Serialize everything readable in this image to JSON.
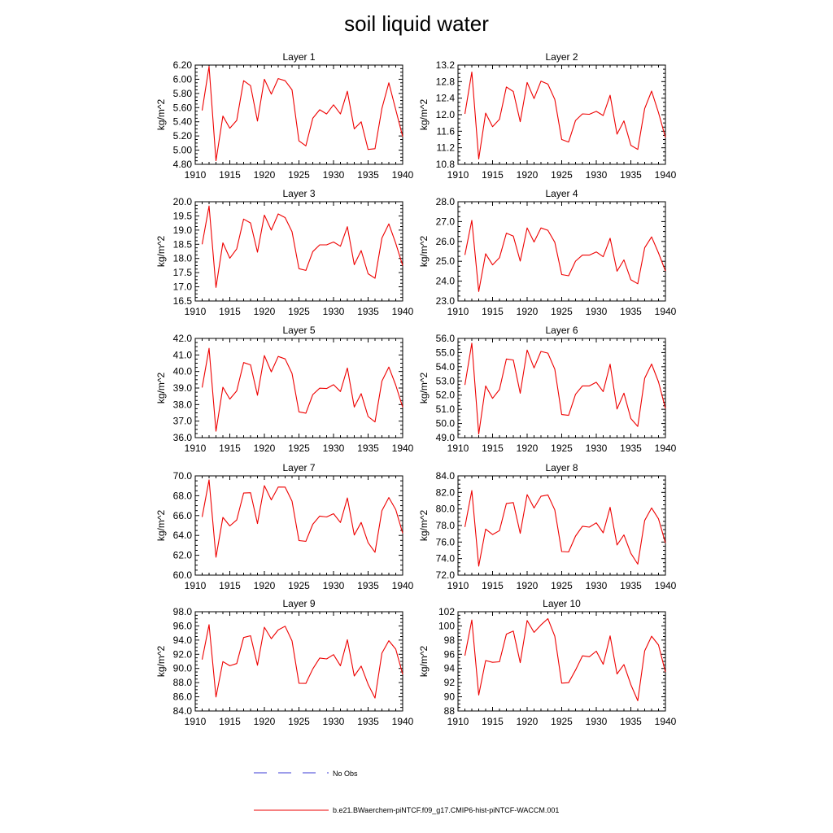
{
  "title": "soil liquid water",
  "colors": {
    "model": "#ee0000",
    "obs": "#3b3bd6",
    "axis": "#000000"
  },
  "legend": {
    "obs_label": "No Obs",
    "model_label": "b.e21.BWaerchem-piNTCF.f09_g17.CMIP6-hist-piNTCF-WACCM.001"
  },
  "chart_data": [
    {
      "type": "line",
      "title": "Layer 1",
      "ylabel": "kg/m^2",
      "xlim": [
        1910,
        1940
      ],
      "ylim": [
        4.8,
        6.2
      ],
      "xticks": [
        1910,
        1915,
        1920,
        1925,
        1930,
        1935,
        1940
      ],
      "xtick_labels": [
        "1910",
        "1915",
        "1920",
        "1925",
        "1930",
        "1935",
        "1940"
      ],
      "yticks": [
        4.8,
        5.0,
        5.2,
        5.4,
        5.6,
        5.8,
        6.0,
        6.2
      ],
      "ytick_labels": [
        "4.80",
        "5.00",
        "5.20",
        "5.40",
        "5.60",
        "5.80",
        "6.00",
        "6.20"
      ],
      "x": [
        1911,
        1912,
        1913,
        1914,
        1915,
        1916,
        1917,
        1918,
        1919,
        1920,
        1921,
        1922,
        1923,
        1924,
        1925,
        1926,
        1927,
        1928,
        1929,
        1930,
        1931,
        1932,
        1933,
        1934,
        1935,
        1936,
        1937,
        1938,
        1939,
        1940
      ],
      "series": [
        {
          "name": "b.e21.BWaerchem-piNTCF.f09_g17.CMIP6-hist-piNTCF-WACCM.001",
          "values": [
            5.56,
            6.18,
            4.85,
            5.48,
            5.31,
            5.42,
            5.98,
            5.91,
            5.41,
            6.0,
            5.79,
            6.01,
            5.98,
            5.85,
            5.13,
            5.06,
            5.45,
            5.57,
            5.51,
            5.64,
            5.51,
            5.83,
            5.3,
            5.4,
            5.01,
            5.02,
            5.59,
            5.95,
            5.57,
            5.19
          ]
        }
      ]
    },
    {
      "type": "line",
      "title": "Layer 2",
      "ylabel": "kg/m^2",
      "xlim": [
        1910,
        1940
      ],
      "ylim": [
        10.8,
        13.2
      ],
      "xticks": [
        1910,
        1915,
        1920,
        1925,
        1930,
        1935,
        1940
      ],
      "xtick_labels": [
        "1910",
        "1915",
        "1920",
        "1925",
        "1930",
        "1935",
        "1940"
      ],
      "yticks": [
        10.8,
        11.2,
        11.6,
        12.0,
        12.4,
        12.8,
        13.2
      ],
      "ytick_labels": [
        "10.8",
        "11.2",
        "11.6",
        "12.0",
        "12.4",
        "12.8",
        "13.2"
      ],
      "x": [
        1911,
        1912,
        1913,
        1914,
        1915,
        1916,
        1917,
        1918,
        1919,
        1920,
        1921,
        1922,
        1923,
        1924,
        1925,
        1926,
        1927,
        1928,
        1929,
        1930,
        1931,
        1932,
        1933,
        1934,
        1935,
        1936,
        1937,
        1938,
        1939,
        1940
      ],
      "series": [
        {
          "name": "b.e21.BWaerchem-piNTCF.f09_g17.CMIP6-hist-piNTCF-WACCM.001",
          "values": [
            12.02,
            13.03,
            10.93,
            12.04,
            11.71,
            11.89,
            12.67,
            12.56,
            11.83,
            12.78,
            12.39,
            12.81,
            12.74,
            12.37,
            11.4,
            11.34,
            11.86,
            12.02,
            12.01,
            12.08,
            11.98,
            12.47,
            11.53,
            11.85,
            11.26,
            11.16,
            12.15,
            12.57,
            12.05,
            11.45
          ]
        }
      ]
    },
    {
      "type": "line",
      "title": "Layer 3",
      "ylabel": "kg/m^2",
      "xlim": [
        1910,
        1940
      ],
      "ylim": [
        16.5,
        20.0
      ],
      "xticks": [
        1910,
        1915,
        1920,
        1925,
        1930,
        1935,
        1940
      ],
      "xtick_labels": [
        "1910",
        "1915",
        "1920",
        "1925",
        "1930",
        "1935",
        "1940"
      ],
      "yticks": [
        16.5,
        17.0,
        17.5,
        18.0,
        18.5,
        19.0,
        19.5,
        20.0
      ],
      "ytick_labels": [
        "16.5",
        "17.0",
        "17.5",
        "18.0",
        "18.5",
        "19.0",
        "19.5",
        "20.0"
      ],
      "x": [
        1911,
        1912,
        1913,
        1914,
        1915,
        1916,
        1917,
        1918,
        1919,
        1920,
        1921,
        1922,
        1923,
        1924,
        1925,
        1926,
        1927,
        1928,
        1929,
        1930,
        1931,
        1932,
        1933,
        1934,
        1935,
        1936,
        1937,
        1938,
        1939,
        1940
      ],
      "series": [
        {
          "name": "b.e21.BWaerchem-piNTCF.f09_g17.CMIP6-hist-piNTCF-WACCM.001",
          "values": [
            18.5,
            19.85,
            16.98,
            18.55,
            18.01,
            18.34,
            19.39,
            19.25,
            18.22,
            19.53,
            19.0,
            19.57,
            19.44,
            18.94,
            17.64,
            17.58,
            18.24,
            18.48,
            18.48,
            18.58,
            18.43,
            19.12,
            17.78,
            18.28,
            17.46,
            17.3,
            18.72,
            19.22,
            18.53,
            17.75
          ]
        }
      ]
    },
    {
      "type": "line",
      "title": "Layer 4",
      "ylabel": "kg/m^2",
      "xlim": [
        1910,
        1940
      ],
      "ylim": [
        23.0,
        28.0
      ],
      "xticks": [
        1910,
        1915,
        1920,
        1925,
        1930,
        1935,
        1940
      ],
      "xtick_labels": [
        "1910",
        "1915",
        "1920",
        "1925",
        "1930",
        "1935",
        "1940"
      ],
      "yticks": [
        23.0,
        24.0,
        25.0,
        26.0,
        27.0,
        28.0
      ],
      "ytick_labels": [
        "23.0",
        "24.0",
        "25.0",
        "26.0",
        "27.0",
        "28.0"
      ],
      "x": [
        1911,
        1912,
        1913,
        1914,
        1915,
        1916,
        1917,
        1918,
        1919,
        1920,
        1921,
        1922,
        1923,
        1924,
        1925,
        1926,
        1927,
        1928,
        1929,
        1930,
        1931,
        1932,
        1933,
        1934,
        1935,
        1936,
        1937,
        1938,
        1939,
        1940
      ],
      "series": [
        {
          "name": "b.e21.BWaerchem-piNTCF.f09_g17.CMIP6-hist-piNTCF-WACCM.001",
          "values": [
            25.32,
            27.06,
            23.48,
            25.38,
            24.82,
            25.18,
            26.42,
            26.27,
            25.01,
            26.68,
            25.97,
            26.68,
            26.56,
            25.96,
            24.33,
            24.27,
            25.01,
            25.31,
            25.31,
            25.47,
            25.23,
            26.16,
            24.5,
            25.07,
            24.07,
            23.87,
            25.68,
            26.23,
            25.42,
            24.51
          ]
        }
      ]
    },
    {
      "type": "line",
      "title": "Layer 5",
      "ylabel": "kg/m^2",
      "xlim": [
        1910,
        1940
      ],
      "ylim": [
        36.0,
        42.0
      ],
      "xticks": [
        1910,
        1915,
        1920,
        1925,
        1930,
        1935,
        1940
      ],
      "xtick_labels": [
        "1910",
        "1915",
        "1920",
        "1925",
        "1930",
        "1935",
        "1940"
      ],
      "yticks": [
        36.0,
        37.0,
        38.0,
        39.0,
        40.0,
        41.0,
        42.0
      ],
      "ytick_labels": [
        "36.0",
        "37.0",
        "38.0",
        "39.0",
        "40.0",
        "41.0",
        "42.0"
      ],
      "x": [
        1911,
        1912,
        1913,
        1914,
        1915,
        1916,
        1917,
        1918,
        1919,
        1920,
        1921,
        1922,
        1923,
        1924,
        1925,
        1926,
        1927,
        1928,
        1929,
        1930,
        1931,
        1932,
        1933,
        1934,
        1935,
        1936,
        1937,
        1938,
        1939,
        1940
      ],
      "series": [
        {
          "name": "b.e21.BWaerchem-piNTCF.f09_g17.CMIP6-hist-piNTCF-WACCM.001",
          "values": [
            39.03,
            41.4,
            36.39,
            39.05,
            38.33,
            38.83,
            40.54,
            40.4,
            38.56,
            40.96,
            39.98,
            40.91,
            40.76,
            39.88,
            37.56,
            37.48,
            38.6,
            38.99,
            38.97,
            39.2,
            38.79,
            40.21,
            37.85,
            38.66,
            37.28,
            36.95,
            39.42,
            40.27,
            39.17,
            37.84
          ]
        }
      ]
    },
    {
      "type": "line",
      "title": "Layer 6",
      "ylabel": "kg/m^2",
      "xlim": [
        1910,
        1940
      ],
      "ylim": [
        49.0,
        56.0
      ],
      "xticks": [
        1910,
        1915,
        1920,
        1925,
        1930,
        1935,
        1940
      ],
      "xtick_labels": [
        "1910",
        "1915",
        "1920",
        "1925",
        "1930",
        "1935",
        "1940"
      ],
      "yticks": [
        49.0,
        50.0,
        51.0,
        52.0,
        53.0,
        54.0,
        55.0,
        56.0
      ],
      "ytick_labels": [
        "49.0",
        "50.0",
        "51.0",
        "52.0",
        "53.0",
        "54.0",
        "55.0",
        "56.0"
      ],
      "x": [
        1911,
        1912,
        1913,
        1914,
        1915,
        1916,
        1917,
        1918,
        1919,
        1920,
        1921,
        1922,
        1923,
        1924,
        1925,
        1926,
        1927,
        1928,
        1929,
        1930,
        1931,
        1932,
        1933,
        1934,
        1935,
        1936,
        1937,
        1938,
        1939,
        1940
      ],
      "series": [
        {
          "name": "b.e21.BWaerchem-piNTCF.f09_g17.CMIP6-hist-piNTCF-WACCM.001",
          "values": [
            52.72,
            55.66,
            49.25,
            52.65,
            51.77,
            52.39,
            54.55,
            54.48,
            52.13,
            55.18,
            53.92,
            55.08,
            54.96,
            53.83,
            50.63,
            50.57,
            52.06,
            52.65,
            52.65,
            52.91,
            52.25,
            54.18,
            51.02,
            52.14,
            50.35,
            49.79,
            53.19,
            54.19,
            52.93,
            51.06
          ]
        }
      ]
    },
    {
      "type": "line",
      "title": "Layer 7",
      "ylabel": "kg/m^2",
      "xlim": [
        1910,
        1940
      ],
      "ylim": [
        60.0,
        70.0
      ],
      "xticks": [
        1910,
        1915,
        1920,
        1925,
        1930,
        1935,
        1940
      ],
      "xtick_labels": [
        "1910",
        "1915",
        "1920",
        "1925",
        "1930",
        "1935",
        "1940"
      ],
      "yticks": [
        60.0,
        62.0,
        64.0,
        66.0,
        68.0,
        70.0
      ],
      "ytick_labels": [
        "60.0",
        "62.0",
        "64.0",
        "66.0",
        "68.0",
        "70.0"
      ],
      "x": [
        1911,
        1912,
        1913,
        1914,
        1915,
        1916,
        1917,
        1918,
        1919,
        1920,
        1921,
        1922,
        1923,
        1924,
        1925,
        1926,
        1927,
        1928,
        1929,
        1930,
        1931,
        1932,
        1933,
        1934,
        1935,
        1936,
        1937,
        1938,
        1939,
        1940
      ],
      "series": [
        {
          "name": "b.e21.BWaerchem-piNTCF.f09_g17.CMIP6-hist-piNTCF-WACCM.001",
          "values": [
            65.86,
            69.6,
            61.8,
            65.82,
            64.96,
            65.56,
            68.27,
            68.3,
            65.2,
            69.02,
            67.58,
            68.88,
            68.87,
            67.45,
            63.48,
            63.41,
            65.12,
            65.95,
            65.86,
            66.19,
            65.3,
            67.78,
            64.04,
            65.31,
            63.27,
            62.3,
            66.5,
            67.82,
            66.6,
            64.22
          ]
        }
      ]
    },
    {
      "type": "line",
      "title": "Layer 8",
      "ylabel": "kg/m^2",
      "xlim": [
        1910,
        1940
      ],
      "ylim": [
        72.0,
        84.0
      ],
      "xticks": [
        1910,
        1915,
        1920,
        1925,
        1930,
        1935,
        1940
      ],
      "xtick_labels": [
        "1910",
        "1915",
        "1920",
        "1925",
        "1930",
        "1935",
        "1940"
      ],
      "yticks": [
        72.0,
        74.0,
        76.0,
        78.0,
        80.0,
        82.0,
        84.0
      ],
      "ytick_labels": [
        "72.0",
        "74.0",
        "76.0",
        "78.0",
        "80.0",
        "82.0",
        "84.0"
      ],
      "x": [
        1911,
        1912,
        1913,
        1914,
        1915,
        1916,
        1917,
        1918,
        1919,
        1920,
        1921,
        1922,
        1923,
        1924,
        1925,
        1926,
        1927,
        1928,
        1929,
        1930,
        1931,
        1932,
        1933,
        1934,
        1935,
        1936,
        1937,
        1938,
        1939,
        1940
      ],
      "series": [
        {
          "name": "b.e21.BWaerchem-piNTCF.f09_g17.CMIP6-hist-piNTCF-WACCM.001",
          "values": [
            77.82,
            82.22,
            73.09,
            77.57,
            76.91,
            77.38,
            80.67,
            80.77,
            77.06,
            81.74,
            80.11,
            81.53,
            81.7,
            79.89,
            74.85,
            74.8,
            76.72,
            77.91,
            77.8,
            78.32,
            77.11,
            80.2,
            75.65,
            76.86,
            74.64,
            73.33,
            78.61,
            80.12,
            78.81,
            75.89
          ]
        }
      ]
    },
    {
      "type": "line",
      "title": "Layer 9",
      "ylabel": "kg/m^2",
      "xlim": [
        1910,
        1940
      ],
      "ylim": [
        84.0,
        98.0
      ],
      "xticks": [
        1910,
        1915,
        1920,
        1925,
        1930,
        1935,
        1940
      ],
      "xtick_labels": [
        "1910",
        "1915",
        "1920",
        "1925",
        "1930",
        "1935",
        "1940"
      ],
      "yticks": [
        84.0,
        86.0,
        88.0,
        90.0,
        92.0,
        94.0,
        96.0,
        98.0
      ],
      "ytick_labels": [
        "84.0",
        "86.0",
        "88.0",
        "90.0",
        "92.0",
        "94.0",
        "96.0",
        "98.0"
      ],
      "x": [
        1911,
        1912,
        1913,
        1914,
        1915,
        1916,
        1917,
        1918,
        1919,
        1920,
        1921,
        1922,
        1923,
        1924,
        1925,
        1926,
        1927,
        1928,
        1929,
        1930,
        1931,
        1932,
        1933,
        1934,
        1935,
        1936,
        1937,
        1938,
        1939,
        1940
      ],
      "series": [
        {
          "name": "b.e21.BWaerchem-piNTCF.f09_g17.CMIP6-hist-piNTCF-WACCM.001",
          "values": [
            91.25,
            96.17,
            85.97,
            90.97,
            90.38,
            90.69,
            94.36,
            94.61,
            90.45,
            95.81,
            94.2,
            95.43,
            95.96,
            93.88,
            87.91,
            87.89,
            89.93,
            91.47,
            91.35,
            91.95,
            90.38,
            94.05,
            88.94,
            90.33,
            87.76,
            85.82,
            92.16,
            93.91,
            92.72,
            89.18
          ]
        }
      ]
    },
    {
      "type": "line",
      "title": "Layer 10",
      "ylabel": "kg/m^2",
      "xlim": [
        1910,
        1940
      ],
      "ylim": [
        88,
        102
      ],
      "xticks": [
        1910,
        1915,
        1920,
        1925,
        1930,
        1935,
        1940
      ],
      "xtick_labels": [
        "1910",
        "1915",
        "1920",
        "1925",
        "1930",
        "1935",
        "1940"
      ],
      "yticks": [
        88,
        90,
        92,
        94,
        96,
        98,
        100,
        102
      ],
      "ytick_labels": [
        "88",
        "90",
        "92",
        "94",
        "96",
        "98",
        "100",
        "102"
      ],
      "x": [
        1911,
        1912,
        1913,
        1914,
        1915,
        1916,
        1917,
        1918,
        1919,
        1920,
        1921,
        1922,
        1923,
        1924,
        1925,
        1926,
        1927,
        1928,
        1929,
        1930,
        1931,
        1932,
        1933,
        1934,
        1935,
        1936,
        1937,
        1938,
        1939,
        1940
      ],
      "series": [
        {
          "name": "b.e21.BWaerchem-piNTCF.f09_g17.CMIP6-hist-piNTCF-WACCM.001",
          "values": [
            95.8,
            100.83,
            90.25,
            95.11,
            94.86,
            94.94,
            98.84,
            99.27,
            94.82,
            100.76,
            99.09,
            100.14,
            101.02,
            98.55,
            91.93,
            91.99,
            93.77,
            95.78,
            95.65,
            96.44,
            94.59,
            98.59,
            93.22,
            94.55,
            91.72,
            89.45,
            96.48,
            98.55,
            97.31,
            93.48
          ]
        }
      ]
    }
  ]
}
